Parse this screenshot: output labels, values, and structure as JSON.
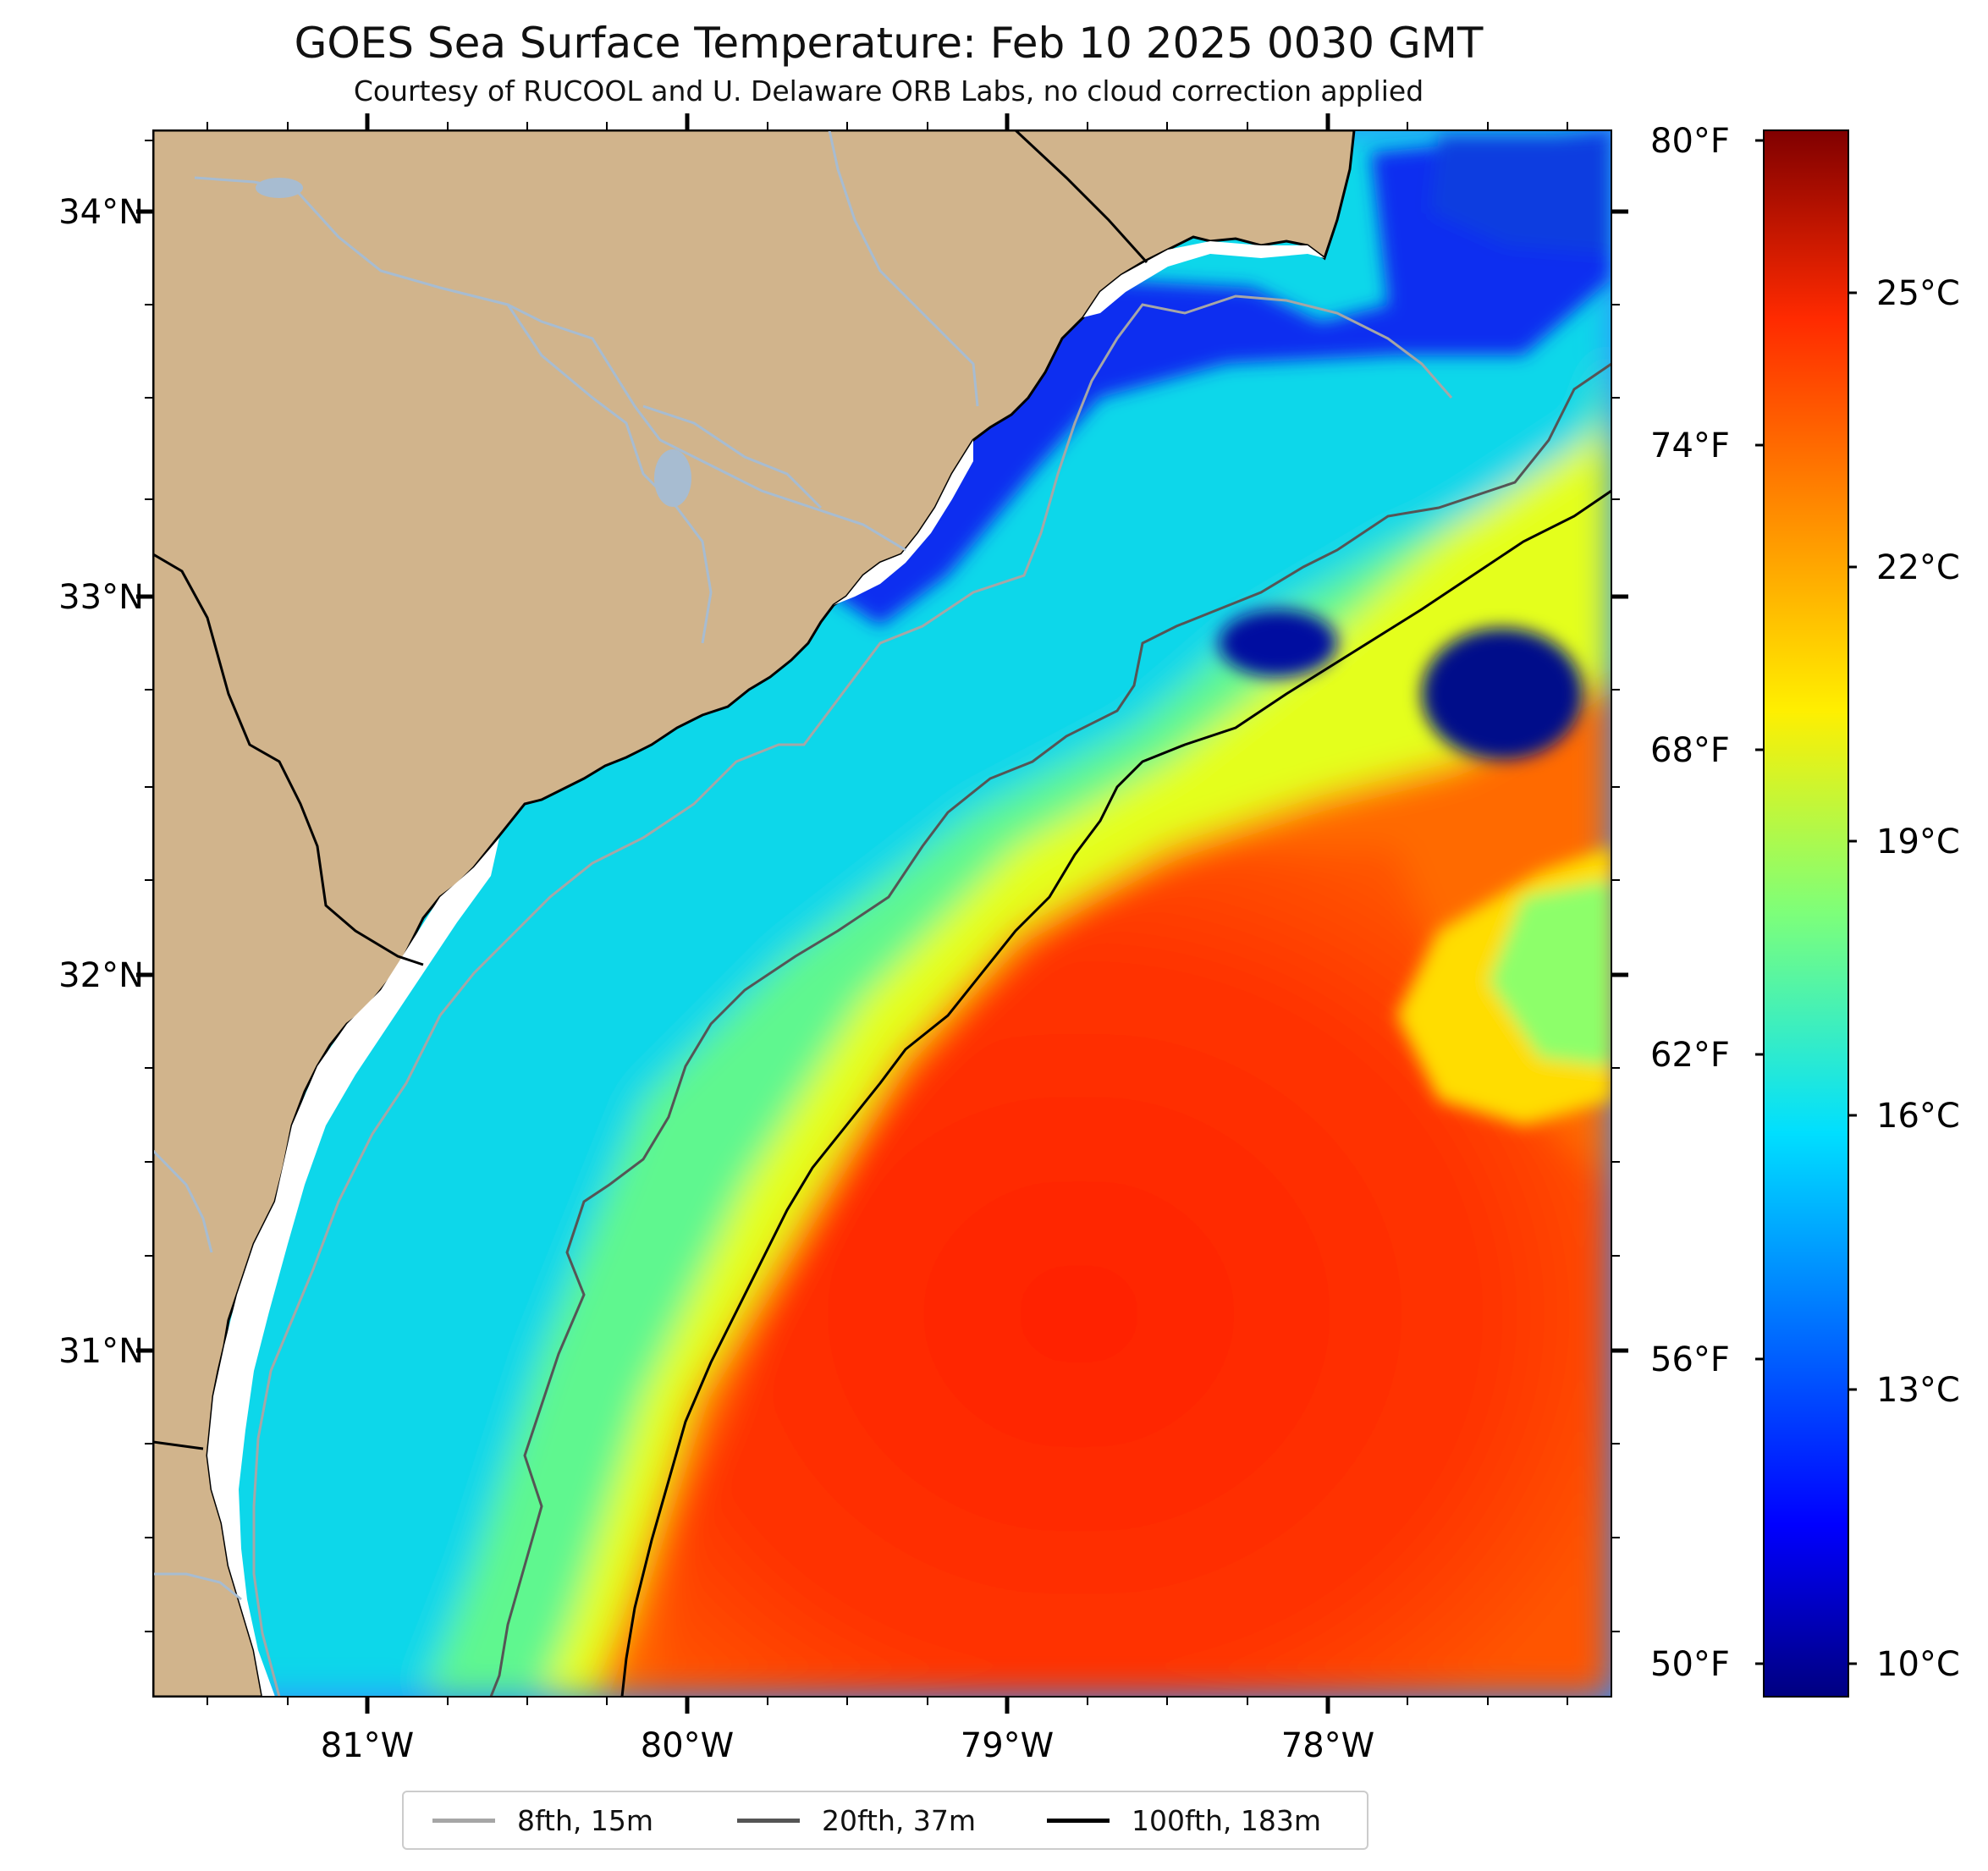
{
  "title": "GOES Sea Surface Temperature: Feb 10 2025 0030 GMT",
  "subtitle": "Courtesy of RUCOOL and U. Delaware ORB Labs, no cloud correction applied",
  "map": {
    "lat_labels": [
      "34°N",
      "33°N",
      "32°N",
      "31°N"
    ],
    "lon_labels": [
      "81°W",
      "80°W",
      "79°W",
      "78°W"
    ],
    "extent": {
      "lon_min": -81.67,
      "lon_max": -77.12,
      "lat_min": 30.1,
      "lat_max": 34.22
    }
  },
  "colorbar": {
    "fahrenheit_labels": [
      "80°F",
      "74°F",
      "68°F",
      "62°F",
      "56°F",
      "50°F"
    ],
    "celsius_labels": [
      "25°C",
      "22°C",
      "19°C",
      "16°C",
      "13°C",
      "10°C"
    ],
    "range_c": [
      9.5,
      26.7
    ],
    "colormap": "jet"
  },
  "legend": {
    "items": [
      {
        "label": "8fth, 15m",
        "color": "#a6a6a6"
      },
      {
        "label": "20fth, 37m",
        "color": "#555555"
      },
      {
        "label": "100fth, 183m",
        "color": "#000000"
      }
    ]
  },
  "colors": {
    "land": "#d1b48c",
    "river": "#a7bcd1",
    "shelf_cold": "#0a2ff0",
    "gulf_stream": "#ff1e00"
  }
}
